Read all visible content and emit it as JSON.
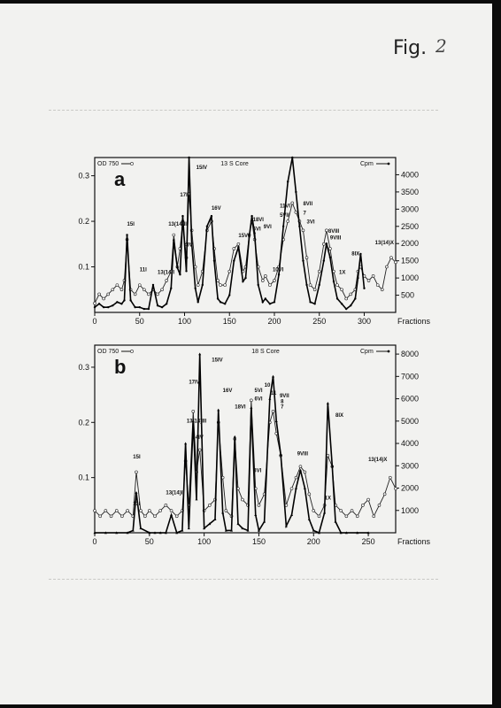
{
  "page": {
    "fig_label": "Fig.",
    "fig_number": "2"
  },
  "chart_data": [
    {
      "type": "line",
      "panel_label": "a",
      "title": "13 S Core",
      "xlabel": "Fractions",
      "left_axis_label": "OD 750",
      "right_axis_label": "Cpm",
      "xlim": [
        0,
        335
      ],
      "ylim": [
        0,
        0.34
      ],
      "y2lim": [
        0,
        4500
      ],
      "x_ticks": [
        0,
        50,
        100,
        150,
        200,
        250,
        300
      ],
      "y_ticks": [
        0.1,
        0.2,
        0.3
      ],
      "y2_ticks": [
        500,
        1000,
        1500,
        2000,
        2500,
        3000,
        3500,
        4000
      ],
      "series": [
        {
          "name": "OD 750",
          "axis": "left",
          "marker": "open-circle",
          "x": [
            0,
            5,
            10,
            15,
            20,
            25,
            30,
            33,
            36,
            40,
            45,
            50,
            55,
            60,
            65,
            70,
            75,
            80,
            85,
            88,
            92,
            95,
            98,
            102,
            105,
            108,
            112,
            115,
            120,
            125,
            130,
            133,
            137,
            140,
            145,
            150,
            155,
            160,
            165,
            168,
            172,
            175,
            178,
            182,
            187,
            190,
            195,
            200,
            205,
            210,
            215,
            220,
            224,
            228,
            232,
            236,
            240,
            245,
            250,
            255,
            258,
            262,
            266,
            270,
            275,
            280,
            285,
            290,
            293,
            296,
            300,
            305,
            310,
            315,
            320,
            325,
            330,
            335
          ],
          "y": [
            0.02,
            0.04,
            0.03,
            0.04,
            0.05,
            0.06,
            0.05,
            0.07,
            0.16,
            0.05,
            0.04,
            0.06,
            0.05,
            0.04,
            0.05,
            0.04,
            0.05,
            0.07,
            0.09,
            0.17,
            0.1,
            0.14,
            0.2,
            0.12,
            0.26,
            0.18,
            0.1,
            0.06,
            0.09,
            0.18,
            0.2,
            0.14,
            0.07,
            0.06,
            0.06,
            0.09,
            0.14,
            0.15,
            0.09,
            0.1,
            0.17,
            0.2,
            0.16,
            0.1,
            0.07,
            0.08,
            0.06,
            0.07,
            0.1,
            0.16,
            0.2,
            0.24,
            0.22,
            0.2,
            0.18,
            0.12,
            0.06,
            0.05,
            0.09,
            0.15,
            0.18,
            0.14,
            0.09,
            0.06,
            0.05,
            0.03,
            0.04,
            0.05,
            0.09,
            0.1,
            0.08,
            0.07,
            0.08,
            0.06,
            0.05,
            0.1,
            0.12,
            0.11
          ]
        },
        {
          "name": "Cpm",
          "axis": "right",
          "marker": "filled-dot",
          "x": [
            0,
            5,
            10,
            15,
            20,
            25,
            30,
            33,
            36,
            40,
            45,
            50,
            55,
            60,
            65,
            70,
            75,
            80,
            85,
            88,
            92,
            95,
            98,
            102,
            105,
            108,
            112,
            115,
            120,
            125,
            130,
            133,
            137,
            140,
            145,
            150,
            155,
            160,
            165,
            168,
            172,
            175,
            178,
            182,
            187,
            190,
            195,
            200,
            205,
            210,
            215,
            220,
            224,
            228,
            232,
            236,
            240,
            245,
            250,
            255,
            258,
            262,
            266,
            270,
            275,
            280,
            285,
            290,
            293,
            296,
            300
          ],
          "y": [
            150,
            250,
            150,
            150,
            200,
            300,
            250,
            350,
            2250,
            350,
            150,
            150,
            100,
            100,
            800,
            200,
            150,
            250,
            700,
            2100,
            1300,
            1100,
            2800,
            1200,
            4500,
            2000,
            700,
            300,
            800,
            2500,
            2800,
            1500,
            400,
            300,
            250,
            500,
            1500,
            1900,
            900,
            1000,
            2200,
            2800,
            2300,
            800,
            300,
            400,
            250,
            300,
            1100,
            2500,
            3800,
            4500,
            3500,
            2500,
            1500,
            800,
            300,
            250,
            800,
            1500,
            2000,
            1600,
            900,
            400,
            250,
            100,
            200,
            400,
            1000,
            1700,
            700
          ]
        }
      ],
      "annotations": [
        "15I",
        "11I",
        "13(14)I",
        "13(14)II",
        "17IV",
        "4IV",
        "15IV",
        "16V",
        "15VI",
        "18VI",
        "6VI",
        "9VI",
        "10VI",
        "11VI",
        "5VII",
        "8VII",
        "7",
        "3VI",
        "8VIII",
        "9VIII",
        "1X",
        "8IX",
        "13(14)X"
      ]
    },
    {
      "type": "line",
      "panel_label": "b",
      "title": "18 S Core",
      "xlabel": "Fractions",
      "left_axis_label": "OD 750",
      "right_axis_label": "Cpm",
      "xlim": [
        0,
        275
      ],
      "ylim": [
        0,
        0.34
      ],
      "y2lim": [
        0,
        8400
      ],
      "x_ticks": [
        0,
        50,
        100,
        150,
        200,
        250
      ],
      "y_ticks": [
        0.1,
        0.2,
        0.3
      ],
      "y2_ticks": [
        1000,
        2000,
        3000,
        4000,
        5000,
        6000,
        7000,
        8000
      ],
      "series": [
        {
          "name": "OD 750",
          "axis": "left",
          "marker": "open-circle",
          "x": [
            0,
            5,
            10,
            15,
            20,
            25,
            30,
            35,
            38,
            42,
            46,
            50,
            55,
            60,
            65,
            70,
            75,
            80,
            83,
            86,
            90,
            93,
            96,
            100,
            105,
            110,
            113,
            117,
            120,
            125,
            128,
            131,
            135,
            140,
            143,
            147,
            150,
            155,
            160,
            163,
            166,
            170,
            175,
            180,
            184,
            188,
            192,
            196,
            200,
            205,
            210,
            213,
            217,
            220,
            225,
            230,
            235,
            240,
            245,
            250,
            255,
            260,
            265,
            270,
            275
          ],
          "y": [
            0.04,
            0.03,
            0.04,
            0.03,
            0.04,
            0.03,
            0.04,
            0.03,
            0.11,
            0.04,
            0.03,
            0.04,
            0.03,
            0.04,
            0.05,
            0.04,
            0.03,
            0.04,
            0.13,
            0.05,
            0.22,
            0.11,
            0.15,
            0.04,
            0.05,
            0.06,
            0.2,
            0.1,
            0.04,
            0.03,
            0.17,
            0.08,
            0.06,
            0.05,
            0.24,
            0.08,
            0.05,
            0.07,
            0.2,
            0.22,
            0.18,
            0.14,
            0.05,
            0.08,
            0.1,
            0.12,
            0.11,
            0.07,
            0.04,
            0.03,
            0.05,
            0.14,
            0.12,
            0.05,
            0.04,
            0.03,
            0.04,
            0.03,
            0.05,
            0.06,
            0.03,
            0.05,
            0.07,
            0.1,
            0.08
          ]
        },
        {
          "name": "Cpm",
          "axis": "right",
          "marker": "filled-triangle",
          "x": [
            0,
            10,
            20,
            30,
            35,
            38,
            42,
            50,
            55,
            60,
            65,
            70,
            75,
            80,
            83,
            86,
            90,
            93,
            96,
            100,
            105,
            110,
            113,
            117,
            120,
            125,
            128,
            131,
            135,
            140,
            143,
            147,
            150,
            155,
            160,
            163,
            166,
            170,
            175,
            180,
            184,
            188,
            192,
            196,
            200,
            205,
            210,
            213,
            217,
            220,
            225,
            230,
            240,
            250
          ],
          "y": [
            0,
            0,
            0,
            0,
            100,
            1800,
            200,
            0,
            0,
            0,
            0,
            800,
            0,
            100,
            4000,
            200,
            5000,
            1500,
            8000,
            200,
            400,
            600,
            5500,
            900,
            100,
            100,
            4300,
            400,
            200,
            100,
            5600,
            800,
            100,
            500,
            6000,
            7000,
            5000,
            3500,
            300,
            800,
            2000,
            2800,
            2000,
            600,
            100,
            0,
            900,
            5800,
            3000,
            500,
            0,
            0,
            0,
            0
          ]
        }
      ],
      "annotations": [
        "15I",
        "11I",
        "13(14)II",
        "13(14)III",
        "17IV",
        "4IV",
        "15IV",
        "16V",
        "18VI",
        "3VI",
        "5VI",
        "6VI",
        "10",
        "11",
        "9VII",
        "8",
        "7",
        "8IX",
        "9VIII",
        "1X",
        "13(14)X"
      ]
    }
  ]
}
